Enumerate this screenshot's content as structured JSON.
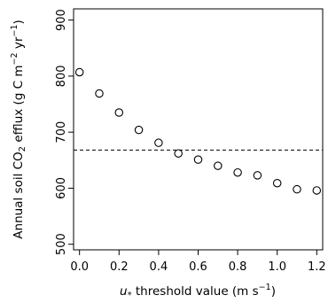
{
  "chart_data": {
    "type": "scatter",
    "x": [
      0.0,
      0.1,
      0.2,
      0.3,
      0.4,
      0.5,
      0.6,
      0.7,
      0.8,
      0.9,
      1.0,
      1.1,
      1.2
    ],
    "y": [
      807,
      769,
      735,
      704,
      681,
      662,
      651,
      640,
      628,
      623,
      609,
      598,
      596
    ],
    "reference_line": {
      "y": 668,
      "style": "dashed"
    },
    "xlim": [
      -0.03,
      1.23
    ],
    "ylim": [
      490,
      920
    ],
    "xticks": [
      0.0,
      0.2,
      0.4,
      0.6,
      0.8,
      1.0,
      1.2
    ],
    "xtick_labels": [
      "0.0",
      "0.2",
      "0.4",
      "0.6",
      "0.8",
      "1.0",
      "1.2"
    ],
    "yticks": [
      500,
      600,
      700,
      800,
      900
    ],
    "ytick_labels": [
      "500",
      "600",
      "700",
      "800",
      "900"
    ],
    "xlabel": {
      "prefix": "u",
      "sub": "*",
      "text": " threshold value (m s",
      "sup": "−1",
      "end": ")"
    },
    "ylabel": {
      "part1": "Annual soil CO",
      "sub": "2",
      "part2": " efflux (g C  m",
      "sup1": "−2",
      "part3": " yr",
      "sup2": "−1",
      "end": ")"
    },
    "grid": false,
    "marker": "open-circle"
  }
}
